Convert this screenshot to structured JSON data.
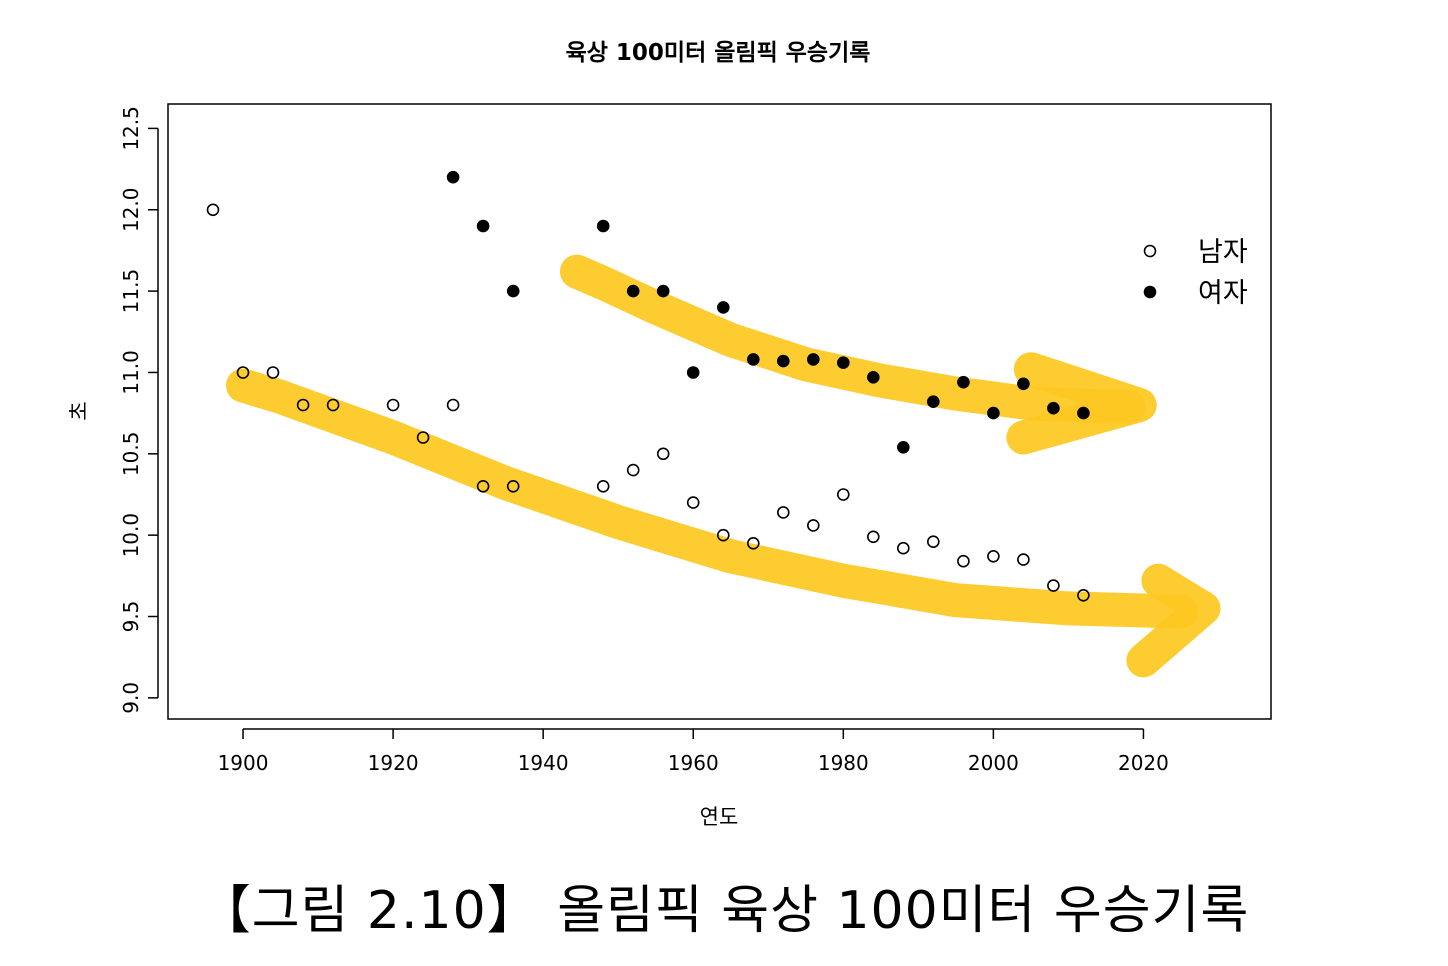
{
  "chart_data": {
    "type": "scatter",
    "title": "육상 100미터 올림픽 우승기록",
    "xlabel": "연도",
    "ylabel": "초",
    "xlim": [
      1890,
      2037
    ],
    "ylim": [
      8.87,
      12.65
    ],
    "xticks": [
      "1900",
      "1920",
      "1940",
      "1960",
      "1980",
      "2000",
      "2020"
    ],
    "yticks": [
      "9.0",
      "9.5",
      "10.0",
      "10.5",
      "11.0",
      "11.5",
      "12.0",
      "12.5"
    ],
    "grid": false,
    "legend_position": "top-right",
    "series": [
      {
        "name": "남자",
        "marker": "open-circle",
        "points": [
          [
            1896,
            12.0
          ],
          [
            1900,
            11.0
          ],
          [
            1904,
            11.0
          ],
          [
            1908,
            10.8
          ],
          [
            1912,
            10.8
          ],
          [
            1920,
            10.8
          ],
          [
            1924,
            10.6
          ],
          [
            1928,
            10.8
          ],
          [
            1932,
            10.3
          ],
          [
            1936,
            10.3
          ],
          [
            1948,
            10.3
          ],
          [
            1952,
            10.4
          ],
          [
            1956,
            10.5
          ],
          [
            1960,
            10.2
          ],
          [
            1964,
            10.0
          ],
          [
            1968,
            9.95
          ],
          [
            1972,
            10.14
          ],
          [
            1976,
            10.06
          ],
          [
            1980,
            10.25
          ],
          [
            1984,
            9.99
          ],
          [
            1988,
            9.92
          ],
          [
            1992,
            9.96
          ],
          [
            1996,
            9.84
          ],
          [
            2000,
            9.87
          ],
          [
            2004,
            9.85
          ],
          [
            2008,
            9.69
          ],
          [
            2012,
            9.63
          ]
        ]
      },
      {
        "name": "여자",
        "marker": "filled-circle",
        "points": [
          [
            1928,
            12.2
          ],
          [
            1932,
            11.9
          ],
          [
            1936,
            11.5
          ],
          [
            1948,
            11.9
          ],
          [
            1952,
            11.5
          ],
          [
            1956,
            11.5
          ],
          [
            1960,
            11.0
          ],
          [
            1964,
            11.4
          ],
          [
            1968,
            11.08
          ],
          [
            1972,
            11.07
          ],
          [
            1976,
            11.08
          ],
          [
            1980,
            11.06
          ],
          [
            1984,
            10.97
          ],
          [
            1988,
            10.54
          ],
          [
            1992,
            10.82
          ],
          [
            1996,
            10.94
          ],
          [
            2000,
            10.75
          ],
          [
            2004,
            10.93
          ],
          [
            2008,
            10.78
          ],
          [
            2012,
            10.75
          ]
        ]
      }
    ],
    "annotations": [
      {
        "type": "trend-arrow",
        "target": "여자",
        "color": "#fdc820",
        "path": [
          [
            1944.5,
            11.62
          ],
          [
            1948,
            11.55
          ],
          [
            1955,
            11.4
          ],
          [
            1965,
            11.2
          ],
          [
            1975,
            11.05
          ],
          [
            1985,
            10.95
          ],
          [
            1995,
            10.87
          ],
          [
            2005,
            10.81
          ],
          [
            2015,
            10.79
          ],
          [
            2018,
            10.79
          ]
        ],
        "head": [
          [
            2005,
            11.02
          ],
          [
            2019.5,
            10.8
          ],
          [
            2004,
            10.6
          ]
        ]
      },
      {
        "type": "trend-arrow",
        "target": "남자",
        "color": "#fdc820",
        "path": [
          [
            1900,
            10.92
          ],
          [
            1905,
            10.85
          ],
          [
            1920,
            10.6
          ],
          [
            1935,
            10.32
          ],
          [
            1950,
            10.08
          ],
          [
            1965,
            9.87
          ],
          [
            1980,
            9.72
          ],
          [
            1995,
            9.6
          ],
          [
            2010,
            9.55
          ],
          [
            2025,
            9.53
          ]
        ],
        "head": [
          [
            2022,
            9.72
          ],
          [
            2028,
            9.55
          ],
          [
            2020,
            9.23
          ]
        ]
      }
    ]
  },
  "caption": "【그림 2.10】   올림픽 육상 100미터 우승기록"
}
